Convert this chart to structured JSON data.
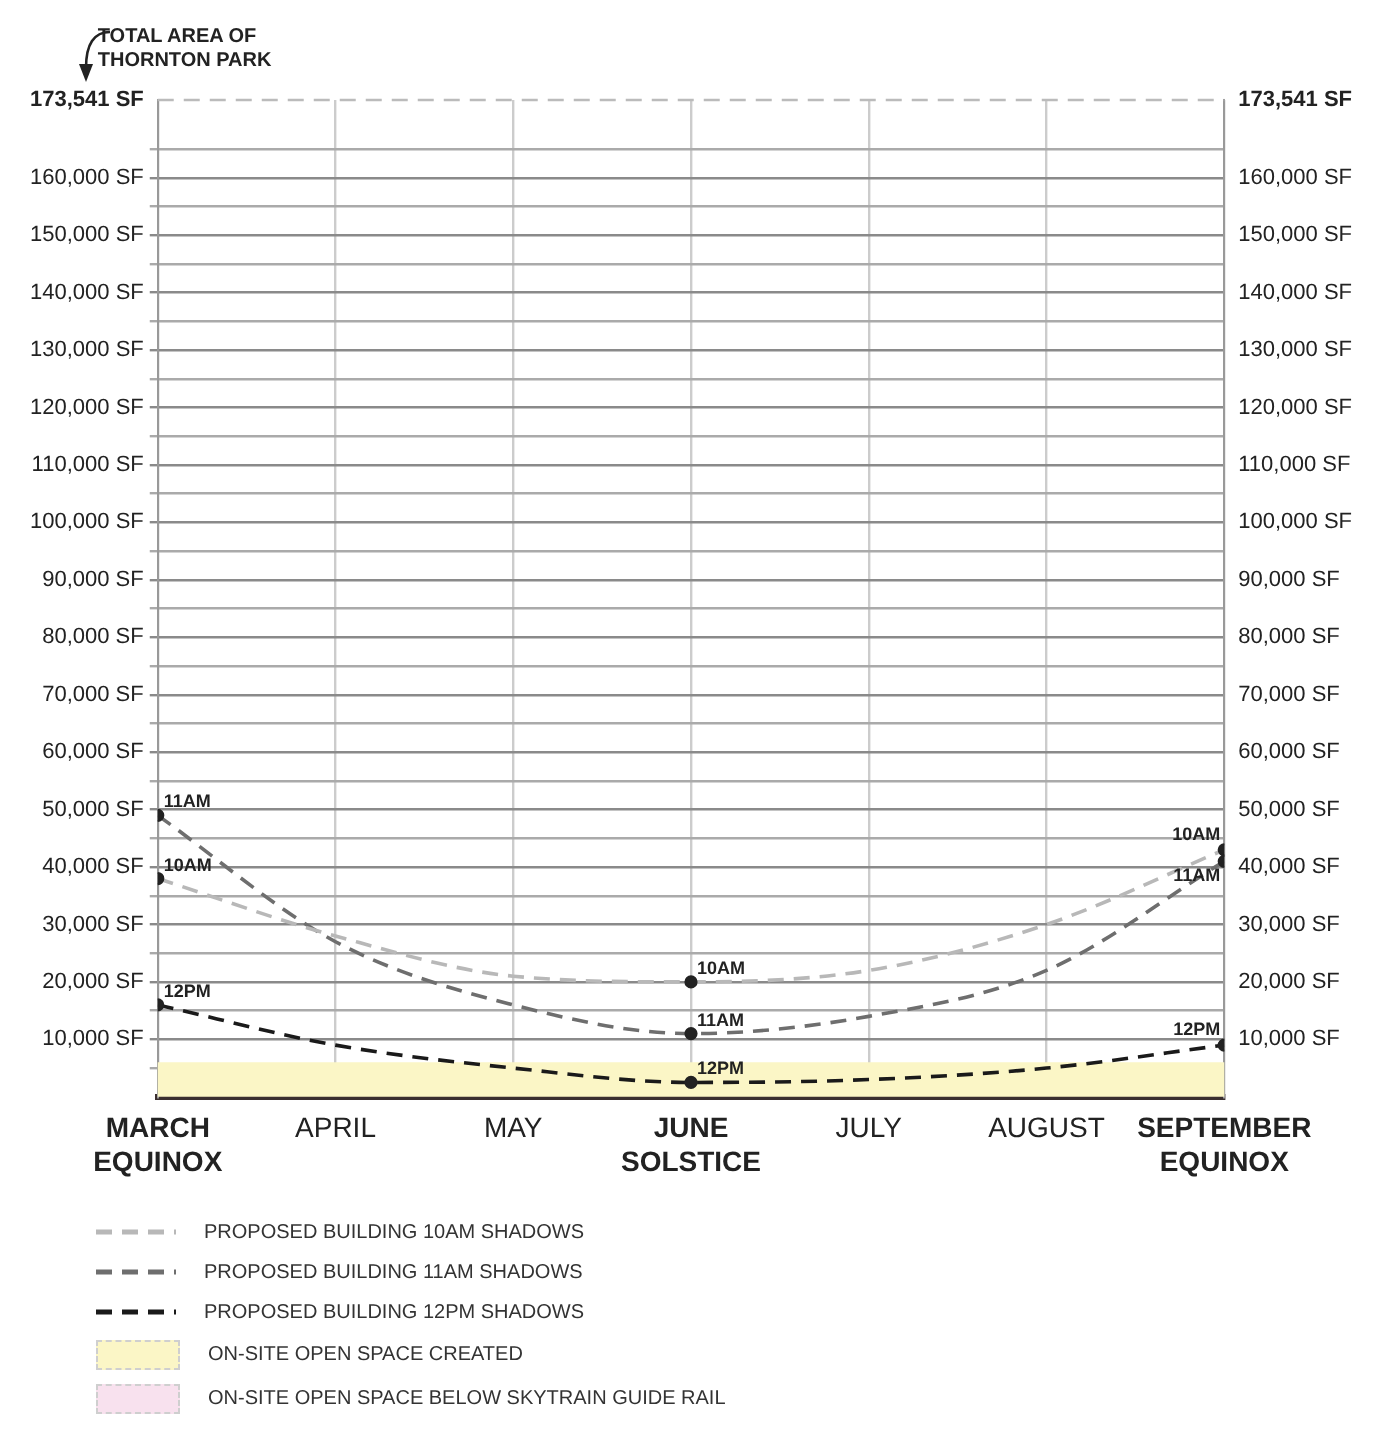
{
  "chart_data": {
    "type": "line",
    "categories": [
      "MARCH EQUINOX",
      "APRIL",
      "MAY",
      "JUNE SOLSTICE",
      "JULY",
      "AUGUST",
      "SEPTEMBER EQUINOX"
    ],
    "series": [
      {
        "name": "PROPOSED BUILDING 10AM SHADOWS",
        "color": "#b8b8b8",
        "line_style": "dashed",
        "marker": "none",
        "values": [
          38000,
          28000,
          21000,
          20000,
          22000,
          30000,
          43000
        ]
      },
      {
        "name": "PROPOSED BUILDING 11AM SHADOWS",
        "color": "#6e6e6e",
        "line_style": "dashed",
        "marker": "none",
        "values": [
          49000,
          27000,
          16000,
          11000,
          14000,
          22000,
          41000
        ]
      },
      {
        "name": "PROPOSED BUILDING 12PM SHADOWS",
        "color": "#1a1a1a",
        "line_style": "dashed",
        "marker": "none",
        "values": [
          16000,
          9000,
          5000,
          2500,
          3000,
          5000,
          9000
        ]
      },
      {
        "type": "scatter",
        "color": "#222222",
        "marker": "circle",
        "x": [
          "MARCH EQUINOX",
          "MARCH EQUINOX",
          "MARCH EQUINOX",
          "JUNE SOLSTICE",
          "JUNE SOLSTICE",
          "JUNE SOLSTICE",
          "SEPTEMBER EQUINOX",
          "SEPTEMBER EQUINOX",
          "SEPTEMBER EQUINOX"
        ],
        "values": [
          38000,
          49000,
          16000,
          20000,
          11000,
          2500,
          43000,
          41000,
          9000
        ]
      }
    ],
    "annotations": [
      {
        "text": "10AM",
        "x": "MARCH EQUINOX",
        "y": 38000
      },
      {
        "text": "11AM",
        "x": "MARCH EQUINOX",
        "y": 49000
      },
      {
        "text": "12PM",
        "x": "MARCH EQUINOX",
        "y": 16000
      },
      {
        "text": "10AM",
        "x": "JUNE SOLSTICE",
        "y": 20000
      },
      {
        "text": "11AM",
        "x": "JUNE SOLSTICE",
        "y": 11000
      },
      {
        "text": "12PM",
        "x": "JUNE SOLSTICE",
        "y": 2500
      },
      {
        "text": "10AM",
        "x": "SEPTEMBER EQUINOX",
        "y": 43000
      },
      {
        "text": "11AM",
        "x": "SEPTEMBER EQUINOX",
        "y": 41000
      },
      {
        "text": "12PM",
        "x": "SEPTEMBER EQUINOX",
        "y": 9000
      },
      "ON-SITE OPEN SPACE BELOW SKYTRAIN GUIDE RAIL"
    ],
    "bands": [
      {
        "axis": "y",
        "from": 0,
        "to": 6000,
        "label": "ON-SITE OPEN SPACE CREATED",
        "color": "#fbf6c6"
      }
    ],
    "ref_lines": [
      {
        "axis": "y",
        "value": 173541,
        "label": "TOTAL AREA OF THORNTON PARK",
        "color": "#bbbbbb",
        "line_style": "dashed"
      }
    ],
    "ylim": [
      0,
      173541
    ],
    "yticks": [
      {
        "value": 5000,
        "label": null
      },
      {
        "value": 10000,
        "label": "10,000 SF"
      },
      {
        "value": 15000,
        "label": null
      },
      {
        "value": 20000,
        "label": "20,000 SF"
      },
      {
        "value": 25000,
        "label": null
      },
      {
        "value": 30000,
        "label": "30,000 SF"
      },
      {
        "value": 35000,
        "label": null
      },
      {
        "value": 40000,
        "label": "40,000 SF"
      },
      {
        "value": 45000,
        "label": null
      },
      {
        "value": 50000,
        "label": "50,000 SF"
      },
      {
        "value": 55000,
        "label": null
      },
      {
        "value": 60000,
        "label": "60,000 SF"
      },
      {
        "value": 65000,
        "label": null
      },
      {
        "value": 70000,
        "label": "70,000 SF"
      },
      {
        "value": 75000,
        "label": null
      },
      {
        "value": 80000,
        "label": "80,000 SF"
      },
      {
        "value": 85000,
        "label": null
      },
      {
        "value": 90000,
        "label": "90,000 SF"
      },
      {
        "value": 95000,
        "label": null
      },
      {
        "value": 100000,
        "label": "100,000 SF"
      },
      {
        "value": 105000,
        "label": null
      },
      {
        "value": 110000,
        "label": "110,000 SF"
      },
      {
        "value": 115000,
        "label": null
      },
      {
        "value": 120000,
        "label": "120,000 SF"
      },
      {
        "value": 125000,
        "label": null
      },
      {
        "value": 130000,
        "label": "130,000 SF"
      },
      {
        "value": 135000,
        "label": null
      },
      {
        "value": 140000,
        "label": "140,000 SF"
      },
      {
        "value": 145000,
        "label": null
      },
      {
        "value": 150000,
        "label": "150,000 SF"
      },
      {
        "value": 155000,
        "label": null
      },
      {
        "value": 160000,
        "label": "160,000 SF"
      },
      {
        "value": 165000,
        "label": null
      },
      {
        "value": 173541,
        "label": "173,541 SF"
      }
    ],
    "y2lim": [
      0,
      173541
    ],
    "y2ticks": [
      {
        "value": 5000,
        "label": null
      },
      {
        "value": 10000,
        "label": "10,000 SF"
      },
      {
        "value": 15000,
        "label": null
      },
      {
        "value": 20000,
        "label": "20,000 SF"
      },
      {
        "value": 25000,
        "label": null
      },
      {
        "value": 30000,
        "label": "30,000 SF"
      },
      {
        "value": 35000,
        "label": null
      },
      {
        "value": 40000,
        "label": "40,000 SF"
      },
      {
        "value": 45000,
        "label": null
      },
      {
        "value": 50000,
        "label": "50,000 SF"
      },
      {
        "value": 55000,
        "label": null
      },
      {
        "value": 60000,
        "label": "60,000 SF"
      },
      {
        "value": 65000,
        "label": null
      },
      {
        "value": 70000,
        "label": "70,000 SF"
      },
      {
        "value": 75000,
        "label": null
      },
      {
        "value": 80000,
        "label": "80,000 SF"
      },
      {
        "value": 85000,
        "label": null
      },
      {
        "value": 90000,
        "label": "90,000 SF"
      },
      {
        "value": 95000,
        "label": null
      },
      {
        "value": 100000,
        "label": "100,000 SF"
      },
      {
        "value": 105000,
        "label": null
      },
      {
        "value": 110000,
        "label": "110,000 SF"
      },
      {
        "value": 115000,
        "label": null
      },
      {
        "value": 120000,
        "label": "120,000 SF"
      },
      {
        "value": 125000,
        "label": null
      },
      {
        "value": 130000,
        "label": "130,000 SF"
      },
      {
        "value": 135000,
        "label": null
      },
      {
        "value": 140000,
        "label": "140,000 SF"
      },
      {
        "value": 145000,
        "label": null
      },
      {
        "value": 150000,
        "label": "150,000 SF"
      },
      {
        "value": 155000,
        "label": null
      },
      {
        "value": 160000,
        "label": "160,000 SF"
      },
      {
        "value": 165000,
        "label": null
      },
      {
        "value": 173541,
        "label": "173,541 SF"
      }
    ],
    "grid": true,
    "legend": "bottom"
  }
}
